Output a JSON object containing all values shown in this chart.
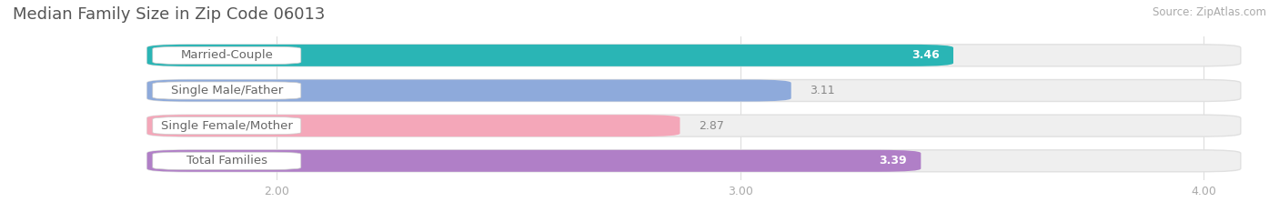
{
  "title": "Median Family Size in Zip Code 06013",
  "source": "Source: ZipAtlas.com",
  "categories": [
    "Married-Couple",
    "Single Male/Father",
    "Single Female/Mother",
    "Total Families"
  ],
  "values": [
    3.46,
    3.11,
    2.87,
    3.39
  ],
  "value_labels": [
    "3.46",
    "3.11",
    "2.87",
    "3.39"
  ],
  "bar_colors": [
    "#2ab5b5",
    "#8eaadb",
    "#f4a7b9",
    "#b07fc7"
  ],
  "value_inside_bar": [
    true,
    false,
    false,
    true
  ],
  "value_color_inside": "#ffffff",
  "value_color_outside": "#888888",
  "x_min": 2.0,
  "x_max": 4.0,
  "x_ticks": [
    2.0,
    3.0,
    4.0
  ],
  "x_tick_labels": [
    "2.00",
    "3.00",
    "4.00"
  ],
  "bar_height": 0.62,
  "background_color": "#ffffff",
  "track_color": "#efefef",
  "track_edge_color": "#e0e0e0",
  "title_fontsize": 13,
  "label_fontsize": 9.5,
  "value_fontsize": 9,
  "source_fontsize": 8.5,
  "label_pill_color": "#ffffff",
  "label_text_color": "#666666",
  "tick_color": "#aaaaaa"
}
